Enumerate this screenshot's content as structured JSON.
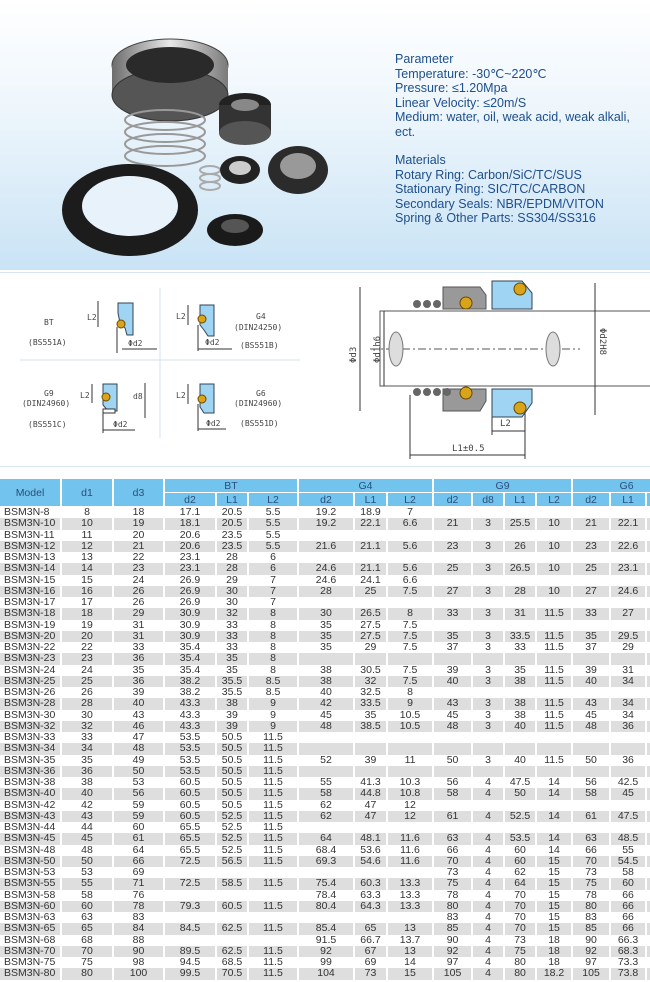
{
  "parameters": {
    "heading": "Parameter",
    "lines": [
      "Temperature: -30℃~220℃",
      "Pressure: ≤1.20Mpa",
      "Linear Velocity: ≤20m/S",
      "Medium: water, oil, weak acid, weak alkali, ect."
    ]
  },
  "materials": {
    "heading": "Materials",
    "lines": [
      "Rotary Ring: Carbon/SiC/TC/SUS",
      "Stationary Ring: SIC/TC/CARBON",
      "Secondary Seals: NBR/EPDM/VITON",
      "Spring & Other Parts: SS304/SS316"
    ]
  },
  "diagrams": {
    "bt": {
      "name": "BT",
      "std": "(BS551A)",
      "l2": "L2",
      "d2": "Φd2"
    },
    "g4": {
      "name": "G4",
      "din": "(DIN24250)",
      "std": "(BS551B)",
      "l2": "L2",
      "d2": "Φd2"
    },
    "g9": {
      "name": "G9",
      "din": "(DIN24960)",
      "std": "(BS551C)",
      "l2": "L2",
      "d8": "d8",
      "d2": "Φd2"
    },
    "g6": {
      "name": "G6",
      "din": "(DIN24960)",
      "std": "(BS551D)",
      "l2": "L2",
      "d2": "Φd2"
    },
    "assembly": {
      "d3": "Φd3",
      "d1": "Φd1h6",
      "d2": "Φd2H8",
      "l2": "L2",
      "l1": "L1±0.5"
    }
  },
  "colors": {
    "header": "#72c3ee",
    "stripe": "#dedede",
    "text_blue": "#1e4f8c",
    "seat_blue": "#9fd4f2",
    "oring": "#d9a31a"
  },
  "table": {
    "headers": {
      "model": "Model",
      "d1": "d1",
      "d3": "d3",
      "bt": "BT",
      "g4": "G4",
      "g9": "G9",
      "g6": "G6",
      "sub": [
        "d2",
        "L1",
        "L2",
        "d2",
        "L1",
        "L2",
        "d2",
        "d8",
        "L1",
        "L2",
        "d2",
        "L1",
        "L2"
      ]
    },
    "rows": [
      [
        "BSM3N-8",
        "8",
        "18",
        "17.1",
        "20.5",
        "5.5",
        "19.2",
        "18.9",
        "7",
        "",
        "",
        "",
        "",
        "",
        "",
        ""
      ],
      [
        "BSM3N-10",
        "10",
        "19",
        "18.1",
        "20.5",
        "5.5",
        "19.2",
        "22.1",
        "6.6",
        "21",
        "3",
        "25.5",
        "10",
        "21",
        "22.1",
        "6.6"
      ],
      [
        "BSM3N-11",
        "11",
        "20",
        "20.6",
        "23.5",
        "5.5",
        "",
        "",
        "",
        "",
        "",
        "",
        "",
        "",
        "",
        ""
      ],
      [
        "BSM3N-12",
        "12",
        "21",
        "20.6",
        "23.5",
        "5.5",
        "21.6",
        "21.1",
        "5.6",
        "23",
        "3",
        "26",
        "10",
        "23",
        "22.6",
        "6.6"
      ],
      [
        "BSM3N-13",
        "13",
        "22",
        "23.1",
        "28",
        "6",
        "",
        "",
        "",
        "",
        "",
        "",
        "",
        "",
        "",
        ""
      ],
      [
        "BSM3N-14",
        "14",
        "23",
        "23.1",
        "28",
        "6",
        "24.6",
        "21.1",
        "5.6",
        "25",
        "3",
        "26.5",
        "10",
        "25",
        "23.1",
        "6.6"
      ],
      [
        "BSM3N-15",
        "15",
        "24",
        "26.9",
        "29",
        "7",
        "24.6",
        "24.1",
        "6.6",
        "",
        "",
        "",
        "",
        "",
        "",
        ""
      ],
      [
        "BSM3N-16",
        "16",
        "26",
        "26.9",
        "30",
        "7",
        "28",
        "25",
        "7.5",
        "27",
        "3",
        "28",
        "10",
        "27",
        "24.6",
        "6.6"
      ],
      [
        "BSM3N-17",
        "17",
        "26",
        "26.9",
        "30",
        "7",
        "",
        "",
        "",
        "",
        "",
        "",
        "",
        "",
        "",
        ""
      ],
      [
        "BSM3N-18",
        "18",
        "29",
        "30.9",
        "32",
        "8",
        "30",
        "26.5",
        "8",
        "33",
        "3",
        "31",
        "11.5",
        "33",
        "27",
        "7.5"
      ],
      [
        "BSM3N-19",
        "19",
        "31",
        "30.9",
        "33",
        "8",
        "35",
        "27.5",
        "7.5",
        "",
        "",
        "",
        "",
        "",
        "",
        ""
      ],
      [
        "BSM3N-20",
        "20",
        "31",
        "30.9",
        "33",
        "8",
        "35",
        "27.5",
        "7.5",
        "35",
        "3",
        "33.5",
        "11.5",
        "35",
        "29.5",
        "7.5"
      ],
      [
        "BSM3N-22",
        "22",
        "33",
        "35.4",
        "33",
        "8",
        "35",
        "29",
        "7.5",
        "37",
        "3",
        "33",
        "11.5",
        "37",
        "29",
        "7.5"
      ],
      [
        "BSM3N-23",
        "23",
        "36",
        "35.4",
        "35",
        "8",
        "",
        "",
        "",
        "",
        "",
        "",
        "",
        "",
        "",
        ""
      ],
      [
        "BSM3N-24",
        "24",
        "35",
        "35.4",
        "35",
        "8",
        "38",
        "30.5",
        "7.5",
        "39",
        "3",
        "35",
        "11.5",
        "39",
        "31",
        "7.5"
      ],
      [
        "BSM3N-25",
        "25",
        "36",
        "38.2",
        "35.5",
        "8.5",
        "38",
        "32",
        "7.5",
        "40",
        "3",
        "38",
        "11.5",
        "40",
        "34",
        "7.5"
      ],
      [
        "BSM3N-26",
        "26",
        "39",
        "38.2",
        "35.5",
        "8.5",
        "40",
        "32.5",
        "8",
        "",
        "",
        "",
        "",
        "",
        "",
        ""
      ],
      [
        "BSM3N-28",
        "28",
        "40",
        "43.3",
        "38",
        "9",
        "42",
        "33.5",
        "9",
        "43",
        "3",
        "38",
        "11.5",
        "43",
        "34",
        "7.5"
      ],
      [
        "BSM3N-30",
        "30",
        "43",
        "43.3",
        "39",
        "9",
        "45",
        "35",
        "10.5",
        "45",
        "3",
        "38",
        "11.5",
        "45",
        "34",
        "7.5"
      ],
      [
        "BSM3N-32",
        "32",
        "46",
        "43.3",
        "39",
        "9",
        "48",
        "38.5",
        "10.5",
        "48",
        "3",
        "40",
        "11.5",
        "48",
        "36",
        "7.5"
      ],
      [
        "BSM3N-33",
        "33",
        "47",
        "53.5",
        "50.5",
        "11.5",
        "",
        "",
        "",
        "",
        "",
        "",
        "",
        "",
        "",
        ""
      ],
      [
        "BSM3N-34",
        "34",
        "48",
        "53.5",
        "50.5",
        "11.5",
        "",
        "",
        "",
        "",
        "",
        "",
        "",
        "",
        "",
        ""
      ],
      [
        "BSM3N-35",
        "35",
        "49",
        "53.5",
        "50.5",
        "11.5",
        "52",
        "39",
        "11",
        "50",
        "3",
        "40",
        "11.5",
        "50",
        "36",
        "7.5"
      ],
      [
        "BSM3N-36",
        "36",
        "50",
        "53.5",
        "50.5",
        "11.5",
        "",
        "",
        "",
        "",
        "",
        "",
        "",
        "",
        "",
        ""
      ],
      [
        "BSM3N-38",
        "38",
        "53",
        "60.5",
        "50.5",
        "11.5",
        "55",
        "41.3",
        "10.3",
        "56",
        "4",
        "47.5",
        "14",
        "56",
        "42.5",
        "9"
      ],
      [
        "BSM3N-40",
        "40",
        "56",
        "60.5",
        "50.5",
        "11.5",
        "58",
        "44.8",
        "10.8",
        "58",
        "4",
        "50",
        "14",
        "58",
        "45",
        "9"
      ],
      [
        "BSM3N-42",
        "42",
        "59",
        "60.5",
        "50.5",
        "11.5",
        "62",
        "47",
        "12",
        "",
        "",
        "",
        "",
        "",
        "",
        ""
      ],
      [
        "BSM3N-43",
        "43",
        "59",
        "60.5",
        "52.5",
        "11.5",
        "62",
        "47",
        "12",
        "61",
        "4",
        "52.5",
        "14",
        "61",
        "47.5",
        "9"
      ],
      [
        "BSM3N-44",
        "44",
        "60",
        "65.5",
        "52.5",
        "11.5",
        "",
        "",
        "",
        "",
        "",
        "",
        "",
        "",
        "",
        ""
      ],
      [
        "BSM3N-45",
        "45",
        "61",
        "65.5",
        "52.5",
        "11.5",
        "64",
        "48.1",
        "11.6",
        "63",
        "4",
        "53.5",
        "14",
        "63",
        "48.5",
        "9"
      ],
      [
        "BSM3N-48",
        "48",
        "64",
        "65.5",
        "52.5",
        "11.5",
        "68.4",
        "53.6",
        "11.6",
        "66",
        "4",
        "60",
        "14",
        "66",
        "55",
        "9"
      ],
      [
        "BSM3N-50",
        "50",
        "66",
        "72.5",
        "56.5",
        "11.5",
        "69.3",
        "54.6",
        "11.6",
        "70",
        "4",
        "60",
        "15",
        "70",
        "54.5",
        "9.5"
      ],
      [
        "BSM3N-53",
        "53",
        "69",
        "",
        "",
        "",
        "",
        "",
        "",
        "73",
        "4",
        "62",
        "15",
        "73",
        "58",
        "11"
      ],
      [
        "BSM3N-55",
        "55",
        "71",
        "72.5",
        "58.5",
        "11.5",
        "75.4",
        "60.3",
        "13.3",
        "75",
        "4",
        "64",
        "15",
        "75",
        "60",
        "11"
      ],
      [
        "BSM3N-58",
        "58",
        "76",
        "",
        "",
        "",
        "78.4",
        "63.3",
        "13.3",
        "78",
        "4",
        "70",
        "15",
        "78",
        "66",
        "11"
      ],
      [
        "BSM3N-60",
        "60",
        "78",
        "79.3",
        "60.5",
        "11.5",
        "80.4",
        "64.3",
        "13.3",
        "80",
        "4",
        "70",
        "15",
        "80",
        "66",
        "11"
      ],
      [
        "BSM3N-63",
        "63",
        "83",
        "",
        "",
        "",
        "",
        "",
        "",
        "83",
        "4",
        "70",
        "15",
        "83",
        "66",
        "11"
      ],
      [
        "BSM3N-65",
        "65",
        "84",
        "84.5",
        "62.5",
        "11.5",
        "85.4",
        "65",
        "13",
        "85",
        "4",
        "70",
        "15",
        "85",
        "66",
        "11"
      ],
      [
        "BSM3N-68",
        "68",
        "88",
        "",
        "",
        "",
        "91.5",
        "66.7",
        "13.7",
        "90",
        "4",
        "73",
        "18",
        "90",
        "66.3",
        "11.3"
      ],
      [
        "BSM3N-70",
        "70",
        "90",
        "89.5",
        "62.5",
        "11.5",
        "92",
        "67",
        "13",
        "92",
        "4",
        "75",
        "18",
        "92",
        "68.3",
        "11.3"
      ],
      [
        "BSM3N-75",
        "75",
        "98",
        "94.5",
        "68.5",
        "11.5",
        "99",
        "69",
        "14",
        "97",
        "4",
        "80",
        "18",
        "97",
        "73.3",
        "11.3"
      ],
      [
        "BSM3N-80",
        "80",
        "100",
        "99.5",
        "70.5",
        "11.5",
        "104",
        "73",
        "15",
        "105",
        "4",
        "80",
        "18.2",
        "105",
        "73.8",
        "12"
      ]
    ]
  }
}
